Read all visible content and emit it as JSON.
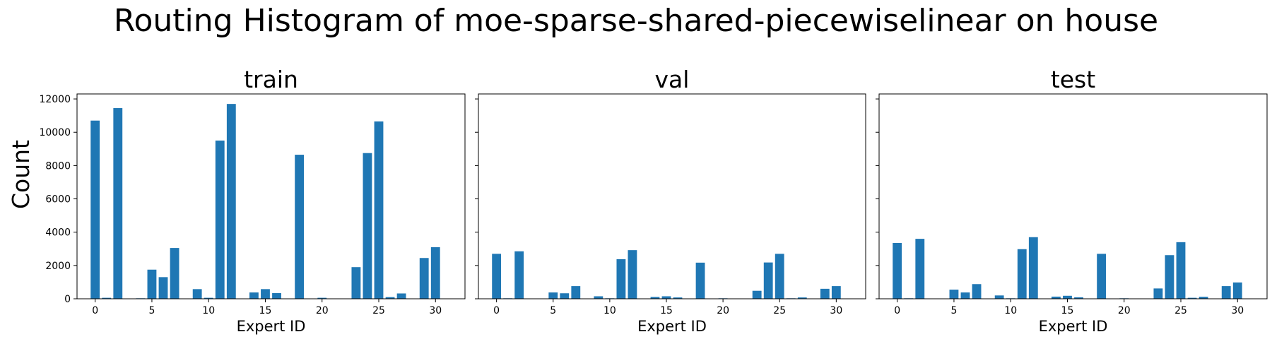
{
  "figure": {
    "title": "Routing Histogram of moe-sparse-shared-piecewiselinear on house",
    "shared_ylabel": "Count",
    "bar_color": "#1f77b4"
  },
  "chart_data": [
    {
      "type": "bar",
      "title": "train",
      "xlabel": "Expert ID",
      "ylabel": "Count",
      "xlim": [
        -1.6,
        32.6
      ],
      "ylim": [
        0,
        12300
      ],
      "xticks": [
        0,
        5,
        10,
        15,
        20,
        25,
        30
      ],
      "yticks": [
        0,
        2000,
        4000,
        6000,
        8000,
        10000,
        12000
      ],
      "categories": [
        0,
        1,
        2,
        3,
        4,
        5,
        6,
        7,
        8,
        9,
        10,
        11,
        12,
        13,
        14,
        15,
        16,
        17,
        18,
        19,
        20,
        21,
        22,
        23,
        24,
        25,
        26,
        27,
        28,
        29,
        30,
        31
      ],
      "values": [
        10700,
        60,
        11450,
        0,
        30,
        1750,
        1300,
        3050,
        0,
        580,
        60,
        9500,
        11700,
        0,
        380,
        580,
        340,
        0,
        8650,
        0,
        60,
        0,
        0,
        1900,
        8750,
        10650,
        100,
        320,
        0,
        2450,
        3100,
        0
      ]
    },
    {
      "type": "bar",
      "title": "val",
      "xlabel": "Expert ID",
      "xlim": [
        -1.6,
        32.6
      ],
      "ylim": [
        0,
        12300
      ],
      "xticks": [
        0,
        5,
        10,
        15,
        20,
        25,
        30
      ],
      "categories": [
        0,
        1,
        2,
        3,
        4,
        5,
        6,
        7,
        8,
        9,
        10,
        11,
        12,
        13,
        14,
        15,
        16,
        17,
        18,
        19,
        20,
        21,
        22,
        23,
        24,
        25,
        26,
        27,
        28,
        29,
        30,
        31
      ],
      "values": [
        2700,
        30,
        2850,
        0,
        0,
        380,
        330,
        760,
        0,
        150,
        30,
        2380,
        2920,
        0,
        110,
        150,
        80,
        0,
        2170,
        0,
        30,
        0,
        0,
        480,
        2180,
        2700,
        30,
        80,
        0,
        600,
        760,
        0
      ]
    },
    {
      "type": "bar",
      "title": "test",
      "xlabel": "Expert ID",
      "xlim": [
        -1.6,
        32.6
      ],
      "ylim": [
        0,
        12300
      ],
      "xticks": [
        0,
        5,
        10,
        15,
        20,
        25,
        30
      ],
      "categories": [
        0,
        1,
        2,
        3,
        4,
        5,
        6,
        7,
        8,
        9,
        10,
        11,
        12,
        13,
        14,
        15,
        16,
        17,
        18,
        19,
        20,
        21,
        22,
        23,
        24,
        25,
        26,
        27,
        28,
        29,
        30,
        31
      ],
      "values": [
        3350,
        30,
        3600,
        0,
        0,
        550,
        380,
        880,
        0,
        200,
        30,
        2980,
        3700,
        0,
        130,
        180,
        90,
        0,
        2700,
        0,
        30,
        0,
        0,
        620,
        2620,
        3400,
        60,
        120,
        0,
        760,
        980,
        0
      ]
    }
  ]
}
